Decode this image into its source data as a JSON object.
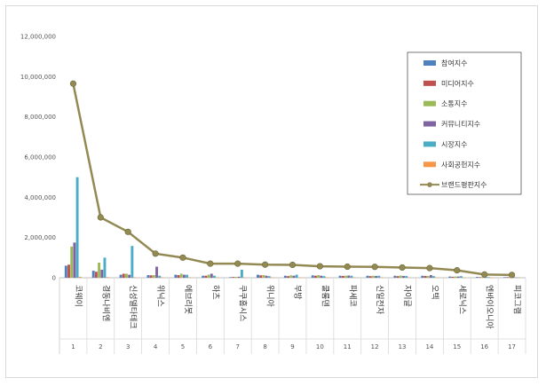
{
  "chart_data": {
    "type": "bar",
    "title": "",
    "xlabel": "",
    "ylabel": "",
    "ylim": [
      0,
      12000000
    ],
    "yticks": [
      "0",
      "2,000,000",
      "4,000,000",
      "6,000,000",
      "8,000,000",
      "10,000,000",
      "12,000,000"
    ],
    "legend_position": "top-right",
    "grid": false,
    "categories": [
      "코웨이",
      "경동나비엔",
      "신성델타테크",
      "위닉스",
      "에브리봇",
      "하츠",
      "쿠쿠홈시스",
      "위니아",
      "부방",
      "쿨룸덴",
      "파세코",
      "신일전자",
      "자이글",
      "오텍",
      "세로닉스",
      "엔바이오니아",
      "피코그램"
    ],
    "ranks": [
      "1",
      "2",
      "3",
      "4",
      "5",
      "6",
      "7",
      "8",
      "9",
      "10",
      "11",
      "12",
      "13",
      "14",
      "15",
      "16",
      "17"
    ],
    "series": [
      {
        "name": "참여지수",
        "color": "#4f81bd",
        "values": [
          600000,
          350000,
          150000,
          130000,
          150000,
          100000,
          30000,
          150000,
          100000,
          120000,
          100000,
          100000,
          100000,
          100000,
          60000,
          40000,
          30000
        ]
      },
      {
        "name": "미디어지수",
        "color": "#c0504d",
        "values": [
          650000,
          300000,
          200000,
          120000,
          130000,
          100000,
          40000,
          120000,
          80000,
          100000,
          90000,
          80000,
          80000,
          90000,
          50000,
          30000,
          30000
        ]
      },
      {
        "name": "소통지수",
        "color": "#9bbb59",
        "values": [
          1550000,
          750000,
          200000,
          130000,
          200000,
          150000,
          40000,
          130000,
          120000,
          130000,
          100000,
          100000,
          110000,
          90000,
          60000,
          40000,
          30000
        ]
      },
      {
        "name": "커뮤니티지수",
        "color": "#8064a2",
        "values": [
          1750000,
          400000,
          150000,
          550000,
          150000,
          200000,
          50000,
          100000,
          100000,
          100000,
          110000,
          90000,
          90000,
          130000,
          60000,
          30000,
          30000
        ]
      },
      {
        "name": "시장지수",
        "color": "#4bacc6",
        "values": [
          5000000,
          1000000,
          1580000,
          100000,
          150000,
          100000,
          400000,
          80000,
          150000,
          80000,
          100000,
          100000,
          90000,
          80000,
          80000,
          30000,
          20000
        ]
      },
      {
        "name": "사회공헌지수",
        "color": "#f79646",
        "values": [
          50000,
          30000,
          20000,
          20000,
          20000,
          20000,
          10000,
          20000,
          20000,
          20000,
          20000,
          20000,
          20000,
          20000,
          10000,
          10000,
          10000
        ]
      }
    ],
    "line_series": {
      "name": "브랜드평판지수",
      "color": "#938953",
      "values": [
        9650000,
        3000000,
        2280000,
        1200000,
        1000000,
        700000,
        700000,
        650000,
        640000,
        570000,
        550000,
        540000,
        510000,
        480000,
        370000,
        160000,
        140000
      ]
    }
  }
}
